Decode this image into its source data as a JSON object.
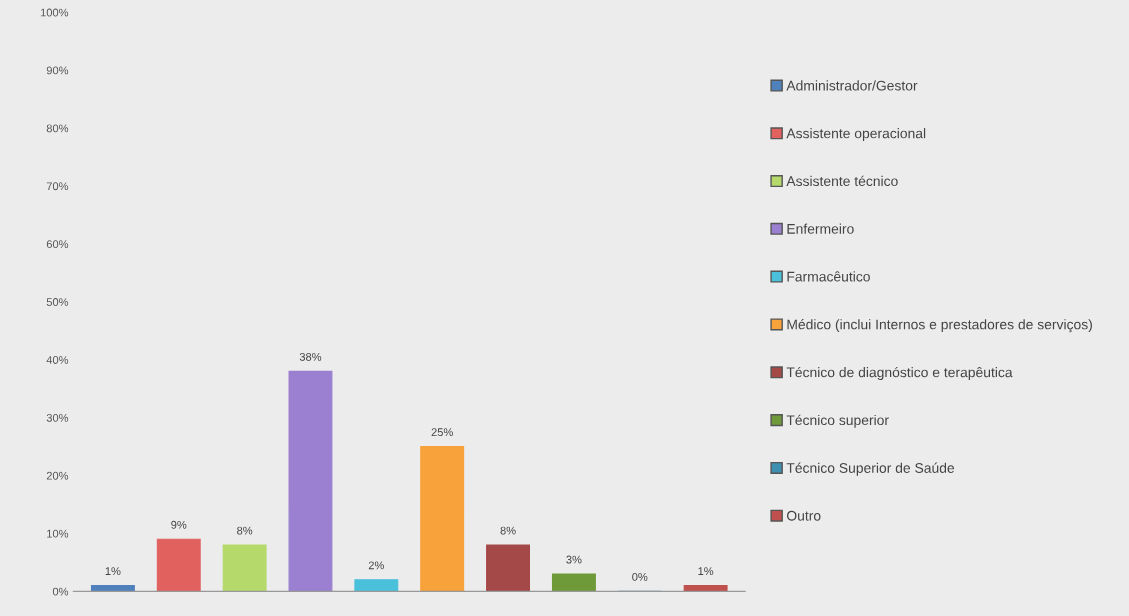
{
  "chart_data": {
    "type": "bar",
    "categories": [
      null,
      null,
      null,
      null,
      null,
      null,
      null,
      null,
      null,
      null
    ],
    "series": [
      {
        "name": "Administrador/Gestor",
        "color": "#4f81bd",
        "values": [
          1,
          null,
          null,
          null,
          null,
          null,
          null,
          null,
          null,
          null
        ],
        "value_labels": [
          "1%",
          null,
          null,
          null,
          null,
          null,
          null,
          null,
          null,
          null
        ]
      },
      {
        "name": "Assistente operacional",
        "color": "#e0615e",
        "values": [
          null,
          9,
          null,
          null,
          null,
          null,
          null,
          null,
          null,
          null
        ],
        "value_labels": [
          null,
          "9%",
          null,
          null,
          null,
          null,
          null,
          null,
          null,
          null
        ]
      },
      {
        "name": "Assistente técnico",
        "color": "#b5d96b",
        "values": [
          null,
          null,
          8,
          null,
          null,
          null,
          null,
          null,
          null,
          null
        ],
        "value_labels": [
          null,
          null,
          "8%",
          null,
          null,
          null,
          null,
          null,
          null,
          null
        ]
      },
      {
        "name": "Enfermeiro",
        "color": "#9b7fd0",
        "values": [
          null,
          null,
          null,
          38,
          null,
          null,
          null,
          null,
          null,
          null
        ],
        "value_labels": [
          null,
          null,
          null,
          "38%",
          null,
          null,
          null,
          null,
          null,
          null
        ]
      },
      {
        "name": "Farmacêutico",
        "color": "#4bc0db",
        "values": [
          null,
          null,
          null,
          null,
          2,
          null,
          null,
          null,
          null,
          null
        ],
        "value_labels": [
          null,
          null,
          null,
          null,
          "2%",
          null,
          null,
          null,
          null,
          null
        ]
      },
      {
        "name": "Médico (inclui Internos e prestadores de serviços)",
        "color": "#f7a23a",
        "values": [
          null,
          null,
          null,
          null,
          null,
          25,
          null,
          null,
          null,
          null
        ],
        "value_labels": [
          null,
          null,
          null,
          null,
          null,
          "25%",
          null,
          null,
          null,
          null
        ]
      },
      {
        "name": "Técnico de diagnóstico e terapêutica",
        "color": "#a54848",
        "values": [
          null,
          null,
          null,
          null,
          null,
          null,
          8,
          null,
          null,
          null
        ],
        "value_labels": [
          null,
          null,
          null,
          null,
          null,
          null,
          "8%",
          null,
          null,
          null
        ]
      },
      {
        "name": "Técnico superior",
        "color": "#6f9a3a",
        "values": [
          null,
          null,
          null,
          null,
          null,
          null,
          null,
          3,
          null,
          null
        ],
        "value_labels": [
          null,
          null,
          null,
          null,
          null,
          null,
          null,
          "3%",
          null,
          null
        ]
      },
      {
        "name": "Técnico Superior de Saúde",
        "color": "#3f8fb0",
        "values": [
          null,
          null,
          null,
          null,
          null,
          null,
          null,
          null,
          0,
          null
        ],
        "value_labels": [
          null,
          null,
          null,
          null,
          null,
          null,
          null,
          null,
          "0%",
          null
        ]
      },
      {
        "name": "Outro",
        "color": "#c0504d",
        "values": [
          null,
          null,
          null,
          null,
          null,
          null,
          null,
          null,
          null,
          1
        ],
        "value_labels": [
          null,
          null,
          null,
          null,
          null,
          null,
          null,
          null,
          null,
          "1%"
        ]
      }
    ],
    "ylim": [
      0,
      100
    ],
    "yticks": [
      {
        "value": 0,
        "label": "0%"
      },
      {
        "value": 10,
        "label": "10%"
      },
      {
        "value": 20,
        "label": "20%"
      },
      {
        "value": 30,
        "label": "30%"
      },
      {
        "value": 40,
        "label": "40%"
      },
      {
        "value": 50,
        "label": "50%"
      },
      {
        "value": 60,
        "label": "60%"
      },
      {
        "value": 70,
        "label": "70%"
      },
      {
        "value": 80,
        "label": "80%"
      },
      {
        "value": 90,
        "label": "90%"
      },
      {
        "value": 100,
        "label": "100%"
      }
    ],
    "grid": false,
    "legend": "right"
  }
}
